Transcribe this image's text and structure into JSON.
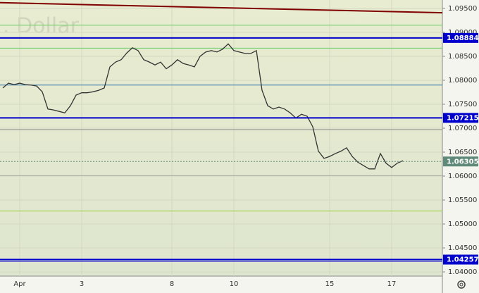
{
  "chart_data": {
    "type": "line",
    "watermark": ". Dollar",
    "categories": [
      null,
      null,
      null,
      "Apr",
      null,
      null,
      null,
      null,
      null,
      null,
      null,
      null,
      null,
      null,
      "3",
      null,
      null,
      null,
      null,
      null,
      null,
      null,
      null,
      null,
      null,
      null,
      null,
      null,
      null,
      null,
      "8",
      null,
      null,
      null,
      null,
      null,
      null,
      null,
      null,
      null,
      null,
      "10",
      null,
      null,
      null,
      null,
      null,
      null,
      null,
      null,
      null,
      null,
      null,
      null,
      null,
      null,
      null,
      null,
      "15",
      null,
      null,
      null,
      null,
      null,
      null,
      null,
      null,
      null,
      null,
      "17",
      null,
      null
    ],
    "values": [
      1.0784,
      1.0794,
      1.0791,
      1.0794,
      1.0791,
      1.079,
      1.0788,
      1.0776,
      1.074,
      1.0738,
      1.0735,
      1.0732,
      1.0747,
      1.0769,
      1.0774,
      1.0774,
      1.0776,
      1.0779,
      1.0784,
      1.0828,
      1.0838,
      1.0843,
      1.0857,
      1.0868,
      1.0862,
      1.0843,
      1.0838,
      1.0832,
      1.0838,
      1.0824,
      1.0832,
      1.0843,
      1.0835,
      1.0832,
      1.0828,
      1.085,
      1.0859,
      1.0862,
      1.0859,
      1.0865,
      1.0876,
      1.0862,
      1.0859,
      1.0856,
      1.0856,
      1.0862,
      1.0779,
      1.0747,
      1.074,
      1.0744,
      1.074,
      1.0732,
      1.0721,
      1.0729,
      1.0725,
      1.0703,
      1.0652,
      1.0637,
      1.0641,
      1.0647,
      1.0652,
      1.0659,
      1.0641,
      1.0629,
      1.0622,
      1.0615,
      1.0615,
      1.0647,
      1.0627,
      1.0618,
      1.0627,
      1.0632
    ],
    "color": "#333333",
    "ylim": [
      1.03912,
      1.09676
    ],
    "yticks": [
      {
        "value": 1.095,
        "label": "1.09500"
      },
      {
        "value": 1.09,
        "label": "1.09000"
      },
      {
        "value": 1.085,
        "label": "1.08500"
      },
      {
        "value": 1.08,
        "label": "1.08000"
      },
      {
        "value": 1.075,
        "label": "1.07500"
      },
      {
        "value": 1.07,
        "label": "1.07000"
      },
      {
        "value": 1.065,
        "label": "1.06500"
      },
      {
        "value": 1.06,
        "label": "1.06000"
      },
      {
        "value": 1.055,
        "label": "1.05500"
      },
      {
        "value": 1.05,
        "label": "1.05000"
      },
      {
        "value": 1.045,
        "label": "1.04500"
      },
      {
        "value": 1.04,
        "label": "1.04000"
      }
    ],
    "grid": true,
    "lines": [
      {
        "value": 1.0915,
        "color": "#66cc66"
      },
      {
        "value": 1.0867,
        "color": "#66cc66"
      },
      {
        "value": 1.079,
        "color": "#3377aa"
      },
      {
        "value": 1.0697,
        "color": "#888888"
      },
      {
        "value": 1.0601,
        "color": "#aaaaaa"
      },
      {
        "value": 1.0527,
        "color": "#99cc33"
      },
      {
        "value": 1.0422,
        "color": "#0000cc"
      }
    ],
    "price_labels": [
      {
        "value": 1.08884,
        "label": "1.08884",
        "color": "#0000cc"
      },
      {
        "value": 1.07215,
        "label": "1.07215",
        "color": "#0000cc"
      },
      {
        "value": 1.04257,
        "label": "1.04257",
        "color": "#0000cc"
      },
      {
        "value": 1.06305,
        "label": "1.06305",
        "color": "#5f8a7a"
      }
    ],
    "trendline": {
      "values": [
        1.0962,
        1.0941
      ],
      "color": "#800000"
    }
  }
}
